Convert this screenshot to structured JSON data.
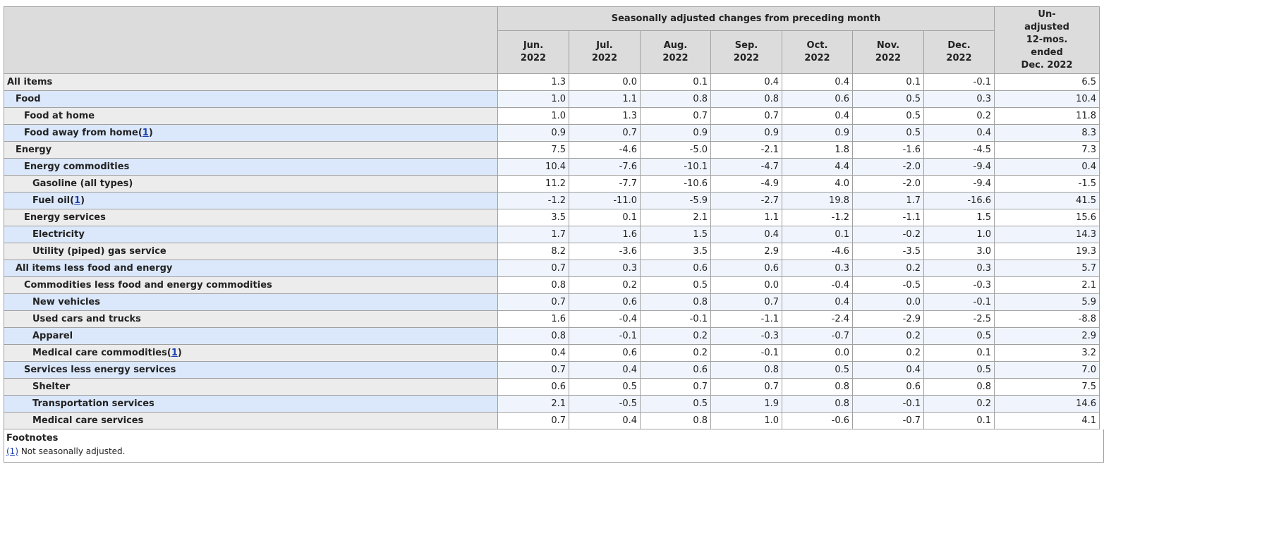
{
  "header": {
    "group_label": "Seasonally adjusted changes from preceding month",
    "months": [
      {
        "line1": "Jun.",
        "line2": "2022"
      },
      {
        "line1": "Jul.",
        "line2": "2022"
      },
      {
        "line1": "Aug.",
        "line2": "2022"
      },
      {
        "line1": "Sep.",
        "line2": "2022"
      },
      {
        "line1": "Oct.",
        "line2": "2022"
      },
      {
        "line1": "Nov.",
        "line2": "2022"
      },
      {
        "line1": "Dec.",
        "line2": "2022"
      }
    ],
    "unadjusted": {
      "line1": "Un-",
      "line2": "adjusted",
      "line3": "12-mos.",
      "line4": "ended",
      "line5": "Dec. 2022"
    }
  },
  "rows": [
    {
      "label": "All items",
      "level": 0,
      "footnote": "",
      "values": [
        "1.3",
        "0.0",
        "0.1",
        "0.4",
        "0.4",
        "0.1",
        "-0.1",
        "6.5"
      ]
    },
    {
      "label": "Food",
      "level": 1,
      "footnote": "",
      "values": [
        "1.0",
        "1.1",
        "0.8",
        "0.8",
        "0.6",
        "0.5",
        "0.3",
        "10.4"
      ]
    },
    {
      "label": "Food at home",
      "level": 2,
      "footnote": "",
      "values": [
        "1.0",
        "1.3",
        "0.7",
        "0.7",
        "0.4",
        "0.5",
        "0.2",
        "11.8"
      ]
    },
    {
      "label": "Food away from home",
      "level": 2,
      "footnote": "1",
      "values": [
        "0.9",
        "0.7",
        "0.9",
        "0.9",
        "0.9",
        "0.5",
        "0.4",
        "8.3"
      ]
    },
    {
      "label": "Energy",
      "level": 1,
      "footnote": "",
      "values": [
        "7.5",
        "-4.6",
        "-5.0",
        "-2.1",
        "1.8",
        "-1.6",
        "-4.5",
        "7.3"
      ]
    },
    {
      "label": "Energy commodities",
      "level": 2,
      "footnote": "",
      "values": [
        "10.4",
        "-7.6",
        "-10.1",
        "-4.7",
        "4.4",
        "-2.0",
        "-9.4",
        "0.4"
      ]
    },
    {
      "label": "Gasoline (all types)",
      "level": 3,
      "footnote": "",
      "values": [
        "11.2",
        "-7.7",
        "-10.6",
        "-4.9",
        "4.0",
        "-2.0",
        "-9.4",
        "-1.5"
      ]
    },
    {
      "label": "Fuel oil",
      "level": 3,
      "footnote": "1",
      "values": [
        "-1.2",
        "-11.0",
        "-5.9",
        "-2.7",
        "19.8",
        "1.7",
        "-16.6",
        "41.5"
      ]
    },
    {
      "label": "Energy services",
      "level": 2,
      "footnote": "",
      "values": [
        "3.5",
        "0.1",
        "2.1",
        "1.1",
        "-1.2",
        "-1.1",
        "1.5",
        "15.6"
      ]
    },
    {
      "label": "Electricity",
      "level": 3,
      "footnote": "",
      "values": [
        "1.7",
        "1.6",
        "1.5",
        "0.4",
        "0.1",
        "-0.2",
        "1.0",
        "14.3"
      ]
    },
    {
      "label": "Utility (piped) gas service",
      "level": 3,
      "footnote": "",
      "values": [
        "8.2",
        "-3.6",
        "3.5",
        "2.9",
        "-4.6",
        "-3.5",
        "3.0",
        "19.3"
      ]
    },
    {
      "label": "All items less food and energy",
      "level": 1,
      "footnote": "",
      "values": [
        "0.7",
        "0.3",
        "0.6",
        "0.6",
        "0.3",
        "0.2",
        "0.3",
        "5.7"
      ]
    },
    {
      "label": "Commodities less food and energy commodities",
      "level": 2,
      "footnote": "",
      "values": [
        "0.8",
        "0.2",
        "0.5",
        "0.0",
        "-0.4",
        "-0.5",
        "-0.3",
        "2.1"
      ]
    },
    {
      "label": "New vehicles",
      "level": 3,
      "footnote": "",
      "values": [
        "0.7",
        "0.6",
        "0.8",
        "0.7",
        "0.4",
        "0.0",
        "-0.1",
        "5.9"
      ]
    },
    {
      "label": "Used cars and trucks",
      "level": 3,
      "footnote": "",
      "values": [
        "1.6",
        "-0.4",
        "-0.1",
        "-1.1",
        "-2.4",
        "-2.9",
        "-2.5",
        "-8.8"
      ]
    },
    {
      "label": "Apparel",
      "level": 3,
      "footnote": "",
      "values": [
        "0.8",
        "-0.1",
        "0.2",
        "-0.3",
        "-0.7",
        "0.2",
        "0.5",
        "2.9"
      ]
    },
    {
      "label": "Medical care commodities",
      "level": 3,
      "footnote": "1",
      "values": [
        "0.4",
        "0.6",
        "0.2",
        "-0.1",
        "0.0",
        "0.2",
        "0.1",
        "3.2"
      ]
    },
    {
      "label": "Services less energy services",
      "level": 2,
      "footnote": "",
      "values": [
        "0.7",
        "0.4",
        "0.6",
        "0.8",
        "0.5",
        "0.4",
        "0.5",
        "7.0"
      ]
    },
    {
      "label": "Shelter",
      "level": 3,
      "footnote": "",
      "values": [
        "0.6",
        "0.5",
        "0.7",
        "0.7",
        "0.8",
        "0.6",
        "0.8",
        "7.5"
      ]
    },
    {
      "label": "Transportation services",
      "level": 3,
      "footnote": "",
      "values": [
        "2.1",
        "-0.5",
        "0.5",
        "1.9",
        "0.8",
        "-0.1",
        "0.2",
        "14.6"
      ]
    },
    {
      "label": "Medical care services",
      "level": 3,
      "footnote": "",
      "values": [
        "0.7",
        "0.4",
        "0.8",
        "1.0",
        "-0.6",
        "-0.7",
        "0.1",
        "4.1"
      ]
    }
  ],
  "footnotes": {
    "title": "Footnotes",
    "items": [
      {
        "ref": "(1)",
        "text": " Not seasonally adjusted."
      }
    ]
  }
}
